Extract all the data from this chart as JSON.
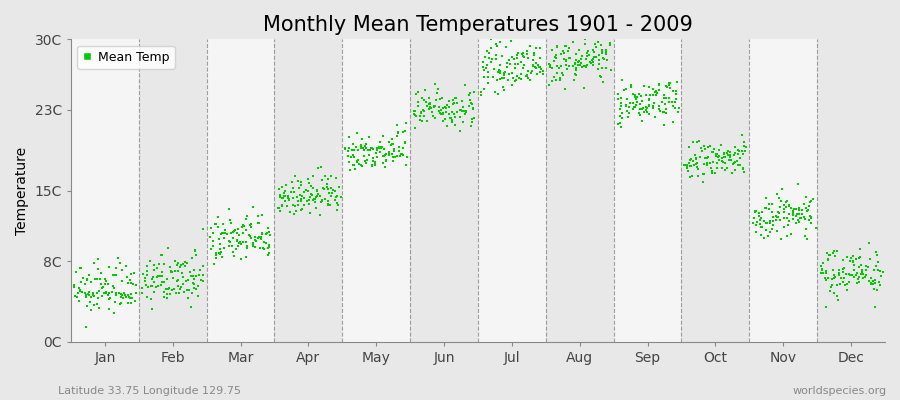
{
  "title": "Monthly Mean Temperatures 1901 - 2009",
  "ylabel": "Temperature",
  "subtitle_left": "Latitude 33.75 Longitude 129.75",
  "subtitle_right": "worldspecies.org",
  "ytick_labels": [
    "0C",
    "8C",
    "15C",
    "23C",
    "30C"
  ],
  "ytick_values": [
    0,
    8,
    15,
    23,
    30
  ],
  "ylim": [
    0,
    30
  ],
  "months": [
    "Jan",
    "Feb",
    "Mar",
    "Apr",
    "May",
    "Jun",
    "Jul",
    "Aug",
    "Sep",
    "Oct",
    "Nov",
    "Dec"
  ],
  "month_mean_temps": [
    5.2,
    6.2,
    10.2,
    14.5,
    19.0,
    23.2,
    27.2,
    27.8,
    23.8,
    18.0,
    12.5,
    7.0
  ],
  "month_std_temps": [
    1.2,
    1.2,
    1.2,
    1.0,
    1.0,
    1.0,
    1.0,
    1.0,
    1.0,
    1.0,
    1.2,
    1.2
  ],
  "n_years": 109,
  "dot_color": "#00cc00",
  "dot_size": 3,
  "background_color": "#e8e8e8",
  "plot_bg_white": "#f5f5f5",
  "plot_bg_gray": "#e8e8e8",
  "grid_color": "#888888",
  "title_fontsize": 15,
  "label_fontsize": 10,
  "tick_fontsize": 10,
  "legend_fontsize": 9
}
